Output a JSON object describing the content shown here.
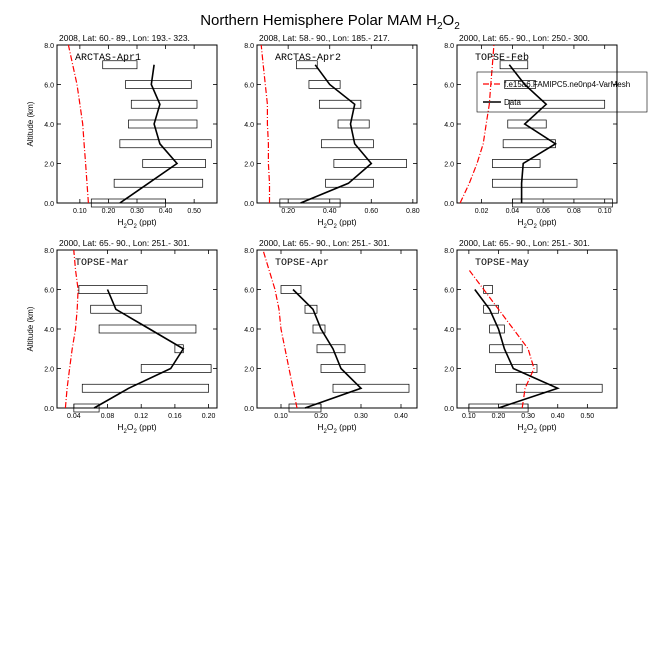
{
  "figure": {
    "title_main": "Northern Hemisphere Polar MAM H",
    "title_species_sub": "2",
    "title_species_tail": "O",
    "title_species_sub2": "2"
  },
  "colors": {
    "model_line": "#ff0000",
    "data_line": "#000000",
    "box_stroke": "#000000"
  },
  "chart_data": [
    {
      "type": "line",
      "name": "ARCTAS-Apr1",
      "header": "2008, Lat:  60.- 89., Lon: 193.- 323.",
      "xlabel": "H2O2 (ppt)",
      "ylabel": "Altitude (km)",
      "xlim": [
        0.02,
        0.58
      ],
      "ylim": [
        0,
        8
      ],
      "xticks": [
        0.1,
        0.2,
        0.3,
        0.4,
        0.5
      ],
      "xticklabels": [
        "0.10",
        "0.20",
        "0.30",
        "0.40",
        "0.50"
      ],
      "yticks": [
        0,
        2,
        4,
        6,
        8
      ],
      "yticklabels": [
        "0.0",
        "2.0",
        "4.0",
        "6.0",
        "8.0"
      ],
      "model": {
        "y": [
          0,
          1,
          2,
          3,
          4,
          5,
          6,
          7,
          8
        ],
        "x": [
          0.13,
          0.125,
          0.12,
          0.115,
          0.11,
          0.1,
          0.09,
          0.075,
          0.06
        ]
      },
      "data": {
        "y": [
          0,
          1,
          2,
          3,
          4,
          5,
          6,
          7
        ],
        "x": [
          0.24,
          0.34,
          0.44,
          0.38,
          0.36,
          0.38,
          0.35,
          0.36
        ],
        "x_low": [
          0.14,
          0.22,
          0.32,
          0.24,
          0.27,
          0.28,
          0.26,
          0.18
        ],
        "x_high": [
          0.4,
          0.53,
          0.54,
          0.56,
          0.51,
          0.51,
          0.49,
          0.3
        ]
      }
    },
    {
      "type": "line",
      "name": "ARCTAS-Apr2",
      "header": "2008, Lat:  58.- 90., Lon: 185.- 217.",
      "xlabel": "H2O2 (ppt)",
      "ylabel": "Altitude (km)",
      "xlim": [
        0.05,
        0.82
      ],
      "ylim": [
        0,
        8
      ],
      "xticks": [
        0.2,
        0.4,
        0.6,
        0.8
      ],
      "xticklabels": [
        "0.20",
        "0.40",
        "0.60",
        "0.80"
      ],
      "yticks": [
        0,
        2,
        4,
        6,
        8
      ],
      "yticklabels": [
        "0.0",
        "2.0",
        "4.0",
        "6.0",
        "8.0"
      ],
      "model": {
        "y": [
          0,
          1,
          2,
          3,
          4,
          5,
          6,
          7,
          8
        ],
        "x": [
          0.11,
          0.11,
          0.105,
          0.105,
          0.1,
          0.1,
          0.09,
          0.08,
          0.07
        ]
      },
      "data": {
        "y": [
          0,
          1,
          2,
          3,
          4,
          5,
          6,
          7
        ],
        "x": [
          0.26,
          0.49,
          0.6,
          0.52,
          0.5,
          0.52,
          0.4,
          0.33
        ],
        "x_low": [
          0.16,
          0.38,
          0.42,
          0.36,
          0.44,
          0.35,
          0.3,
          0.24
        ],
        "x_high": [
          0.45,
          0.61,
          0.77,
          0.61,
          0.59,
          0.55,
          0.45,
          0.34
        ]
      }
    },
    {
      "type": "line",
      "name": "TOPSE-Feb",
      "header": "2000, Lat: 65.- 90., Lon: 250.- 300.",
      "xlabel": "H2O2 (ppt)",
      "ylabel": "Altitude (km)",
      "xlim": [
        0.004,
        0.108
      ],
      "ylim": [
        0,
        8
      ],
      "xticks": [
        0.02,
        0.04,
        0.06,
        0.08,
        0.1
      ],
      "xticklabels": [
        "0.02",
        "0.04",
        "0.06",
        "0.08",
        "0.10"
      ],
      "yticks": [
        0,
        2,
        4,
        6,
        8
      ],
      "yticklabels": [
        "0.0",
        "2.0",
        "4.0",
        "6.0",
        "8.0"
      ],
      "legend": {
        "position": "top-right",
        "entries": [
          "f.e15a6.FAMIPC5.ne0np4-VarMesh",
          "Data"
        ]
      },
      "model": {
        "y": [
          0,
          1,
          2,
          3,
          4,
          5,
          6,
          7,
          8
        ],
        "x": [
          0.006,
          0.012,
          0.017,
          0.021,
          0.023,
          0.025,
          0.026,
          0.027,
          0.028
        ]
      },
      "data": {
        "y": [
          0,
          1,
          2,
          3,
          4,
          5,
          6,
          7
        ],
        "x": [
          0.046,
          0.046,
          0.047,
          0.068,
          0.048,
          0.062,
          0.048,
          0.038
        ],
        "x_low": [
          0.04,
          0.027,
          0.027,
          0.034,
          0.037,
          0.038,
          0.035,
          0.032
        ],
        "x_high": [
          0.105,
          0.082,
          0.058,
          0.068,
          0.062,
          0.1,
          0.055,
          0.05
        ]
      }
    },
    {
      "type": "line",
      "name": "TOPSE-Mar",
      "header": "2000, Lat: 65.- 90., Lon: 251.- 301.",
      "xlabel": "H2O2 (ppt)",
      "ylabel": "Altitude (km)",
      "xlim": [
        0.02,
        0.21
      ],
      "ylim": [
        0,
        8
      ],
      "xticks": [
        0.04,
        0.08,
        0.12,
        0.16,
        0.2
      ],
      "xticklabels": [
        "0.04",
        "0.08",
        "0.12",
        "0.16",
        "0.20"
      ],
      "yticks": [
        0,
        2,
        4,
        6,
        8
      ],
      "yticklabels": [
        "0.0",
        "2.0",
        "4.0",
        "6.0",
        "8.0"
      ],
      "model": {
        "y": [
          0,
          1,
          2,
          3,
          4,
          5,
          6,
          7,
          8
        ],
        "x": [
          0.03,
          0.032,
          0.035,
          0.038,
          0.042,
          0.044,
          0.045,
          0.042,
          0.04
        ]
      },
      "data": {
        "y": [
          0,
          1,
          2,
          3,
          4,
          5,
          6
        ],
        "x": [
          0.064,
          0.105,
          0.155,
          0.17,
          0.13,
          0.09,
          0.08
        ],
        "x_low": [
          0.04,
          0.05,
          0.12,
          0.16,
          0.07,
          0.06,
          0.046
        ],
        "x_high": [
          0.07,
          0.2,
          0.203,
          0.17,
          0.185,
          0.12,
          0.127
        ]
      }
    },
    {
      "type": "line",
      "name": "TOPSE-Apr",
      "header": "2000, Lat: 65.- 90., Lon: 251.- 301.",
      "xlabel": "H2O2 (ppt)",
      "ylabel": "Altitude (km)",
      "xlim": [
        0.04,
        0.44
      ],
      "ylim": [
        0,
        8
      ],
      "xticks": [
        0.1,
        0.2,
        0.3,
        0.4
      ],
      "xticklabels": [
        "0.10",
        "0.20",
        "0.30",
        "0.40"
      ],
      "yticks": [
        0,
        2,
        4,
        6,
        8
      ],
      "yticklabels": [
        "0.0",
        "2.0",
        "4.0",
        "6.0",
        "8.0"
      ],
      "model": {
        "y": [
          0,
          1,
          2,
          3,
          4,
          5,
          6,
          7,
          8
        ],
        "x": [
          0.14,
          0.13,
          0.12,
          0.11,
          0.1,
          0.095,
          0.085,
          0.07,
          0.055
        ]
      },
      "data": {
        "y": [
          0,
          1,
          2,
          3,
          4,
          5,
          6
        ],
        "x": [
          0.16,
          0.3,
          0.25,
          0.23,
          0.2,
          0.18,
          0.13
        ],
        "x_low": [
          0.12,
          0.23,
          0.2,
          0.19,
          0.18,
          0.16,
          0.1
        ],
        "x_high": [
          0.2,
          0.42,
          0.31,
          0.26,
          0.21,
          0.19,
          0.15
        ]
      }
    },
    {
      "type": "line",
      "name": "TOPSE-May",
      "header": "2000, Lat: 65.- 90., Lon: 251.- 301.",
      "xlabel": "H2O2 (ppt)",
      "ylabel": "Altitude (km)",
      "xlim": [
        0.06,
        0.6
      ],
      "ylim": [
        0,
        8
      ],
      "xticks": [
        0.1,
        0.2,
        0.3,
        0.4,
        0.5
      ],
      "xticklabels": [
        "0.10",
        "0.20",
        "0.30",
        "0.40",
        "0.50"
      ],
      "yticks": [
        0,
        2,
        4,
        6,
        8
      ],
      "yticklabels": [
        "0.0",
        "2.0",
        "4.0",
        "6.0",
        "8.0"
      ],
      "model": {
        "y": [
          0,
          1,
          2,
          3,
          4,
          5,
          6,
          7
        ],
        "x": [
          0.28,
          0.29,
          0.32,
          0.3,
          0.25,
          0.2,
          0.15,
          0.1
        ]
      },
      "data": {
        "y": [
          0,
          1,
          2,
          3,
          4,
          5,
          6
        ],
        "x": [
          0.2,
          0.4,
          0.25,
          0.22,
          0.2,
          0.17,
          0.12
        ],
        "x_low": [
          0.1,
          0.26,
          0.19,
          0.17,
          0.17,
          0.15,
          0.15
        ],
        "x_high": [
          0.3,
          0.55,
          0.33,
          0.28,
          0.22,
          0.2,
          0.18
        ]
      }
    }
  ]
}
